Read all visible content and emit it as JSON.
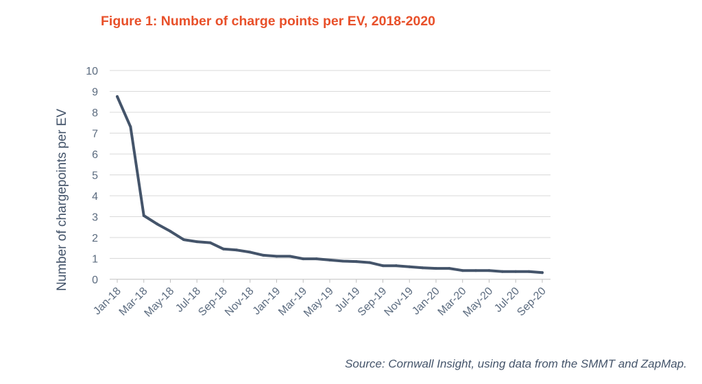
{
  "figure": {
    "title": "Figure 1: Number of charge points per EV, 2018-2020",
    "source": "Source: Cornwall Insight, using data from the SMMT and ZapMap."
  },
  "colors": {
    "title": "#e8502a",
    "line": "#44546a",
    "grid": "#d9d9d9",
    "text": "#5b6b7f"
  },
  "chart_data": {
    "type": "line",
    "title": "Figure 1: Number of charge points per EV, 2018-2020",
    "xlabel": "",
    "ylabel": "Number of chargepoints per EV",
    "ylim": [
      0,
      10
    ],
    "yticks": [
      0,
      1,
      2,
      3,
      4,
      5,
      6,
      7,
      8,
      9,
      10
    ],
    "grid": true,
    "legend": "none",
    "x": [
      "Jan-18",
      "Feb-18",
      "Mar-18",
      "Apr-18",
      "May-18",
      "Jun-18",
      "Jul-18",
      "Aug-18",
      "Sep-18",
      "Oct-18",
      "Nov-18",
      "Dec-18",
      "Jan-19",
      "Feb-19",
      "Mar-19",
      "Apr-19",
      "May-19",
      "Jun-19",
      "Jul-19",
      "Aug-19",
      "Sep-19",
      "Oct-19",
      "Nov-19",
      "Dec-19",
      "Jan-20",
      "Feb-20",
      "Mar-20",
      "Apr-20",
      "May-20",
      "Jun-20",
      "Jul-20",
      "Aug-20",
      "Sep-20"
    ],
    "x_tick_labels": [
      "Jan-18",
      "Mar-18",
      "May-18",
      "Jul-18",
      "Sep-18",
      "Nov-18",
      "Jan-19",
      "Mar-19",
      "May-19",
      "Jul-19",
      "Sep-19",
      "Nov-19",
      "Jan-20",
      "Mar-20",
      "May-20",
      "Jul-20",
      "Sep-20"
    ],
    "series": [
      {
        "values": [
          8.75,
          7.3,
          3.05,
          2.65,
          2.3,
          1.9,
          1.8,
          1.75,
          1.45,
          1.4,
          1.3,
          1.15,
          1.1,
          1.1,
          0.98,
          0.98,
          0.92,
          0.87,
          0.85,
          0.8,
          0.65,
          0.65,
          0.6,
          0.55,
          0.52,
          0.52,
          0.42,
          0.42,
          0.42,
          0.37,
          0.37,
          0.37,
          0.32
        ]
      }
    ]
  }
}
